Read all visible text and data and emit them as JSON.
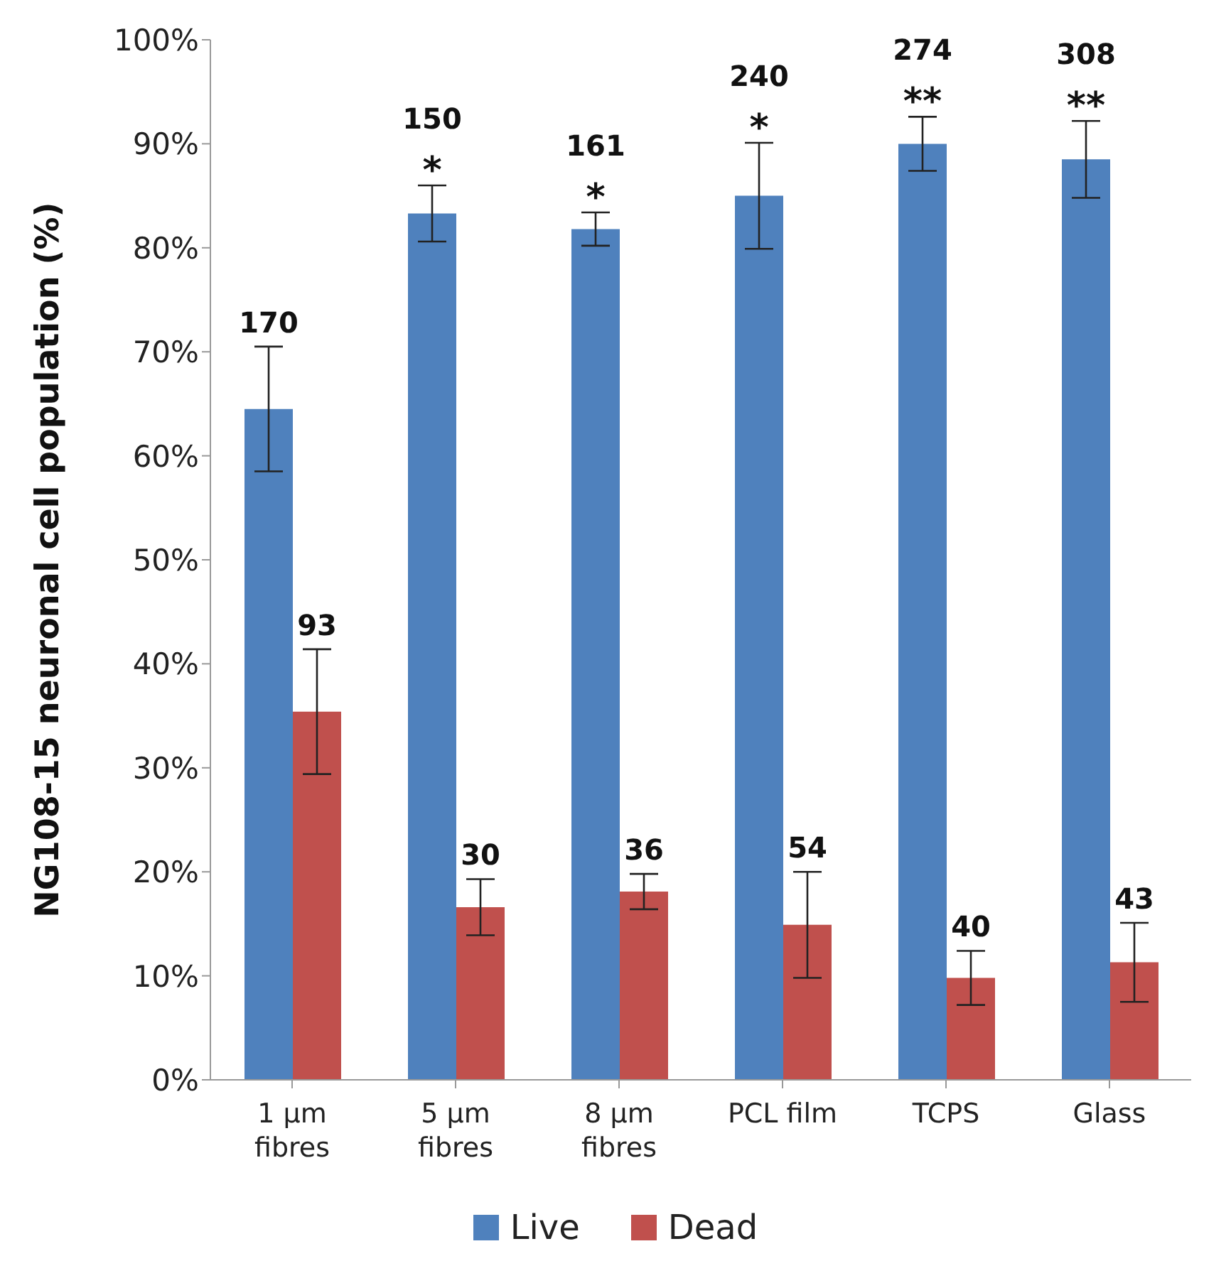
{
  "chart_data": {
    "type": "bar",
    "ylabel": "NG108-15 neuronal cell population (%)",
    "categories": [
      "1 µm\nfibres",
      "5 µm\nfibres",
      "8 µm\nfibres",
      "PCL film",
      "TCPS",
      "Glass"
    ],
    "series": [
      {
        "name": "Live",
        "color": "#4f81bd",
        "values": [
          64.5,
          83.3,
          81.8,
          85,
          90,
          88.5
        ],
        "errors": [
          6,
          2.7,
          1.6,
          5.1,
          2.6,
          3.7
        ]
      },
      {
        "name": "Dead",
        "color": "#c0504d",
        "values": [
          35.4,
          16.6,
          18.1,
          14.9,
          9.8,
          11.3
        ],
        "errors": [
          6,
          2.7,
          1.7,
          5.1,
          2.6,
          3.8
        ]
      }
    ],
    "ylim": [
      0,
      100
    ],
    "yticks": [
      {
        "value": 0,
        "label": "0%"
      },
      {
        "value": 10,
        "label": "10%"
      },
      {
        "value": 20,
        "label": "20%"
      },
      {
        "value": 30,
        "label": "30%"
      },
      {
        "value": 40,
        "label": "40%"
      },
      {
        "value": 50,
        "label": "50%"
      },
      {
        "value": 60,
        "label": "60%"
      },
      {
        "value": 70,
        "label": "70%"
      },
      {
        "value": 80,
        "label": "80%"
      },
      {
        "value": 90,
        "label": "90%"
      },
      {
        "value": 100,
        "label": "100%"
      }
    ],
    "grid": false,
    "legend": "bottom",
    "annotations": [
      {
        "text": "170",
        "x": "1 µm\nfibres",
        "y": 64.5
      },
      {
        "text": "93",
        "x": "1 µm\nfibres",
        "y": 35.4
      },
      {
        "text": "150\n*",
        "x": "5 µm\nfibres",
        "y": 83.3
      },
      {
        "text": "30",
        "x": "5 µm\nfibres",
        "y": 16.6
      },
      {
        "text": "161\n*",
        "x": "8 µm\nfibres",
        "y": 81.8
      },
      {
        "text": "36",
        "x": "8 µm\nfibres",
        "y": 18.1
      },
      {
        "text": "240\n*",
        "x": "PCL film",
        "y": 85
      },
      {
        "text": "54",
        "x": "PCL film",
        "y": 14.9
      },
      {
        "text": "274\n**",
        "x": "TCPS",
        "y": 90
      },
      {
        "text": "40",
        "x": "TCPS",
        "y": 9.8
      },
      {
        "text": "308\n**",
        "x": "Glass",
        "y": 88.5
      },
      {
        "text": "43",
        "x": "Glass",
        "y": 11.3
      }
    ]
  }
}
